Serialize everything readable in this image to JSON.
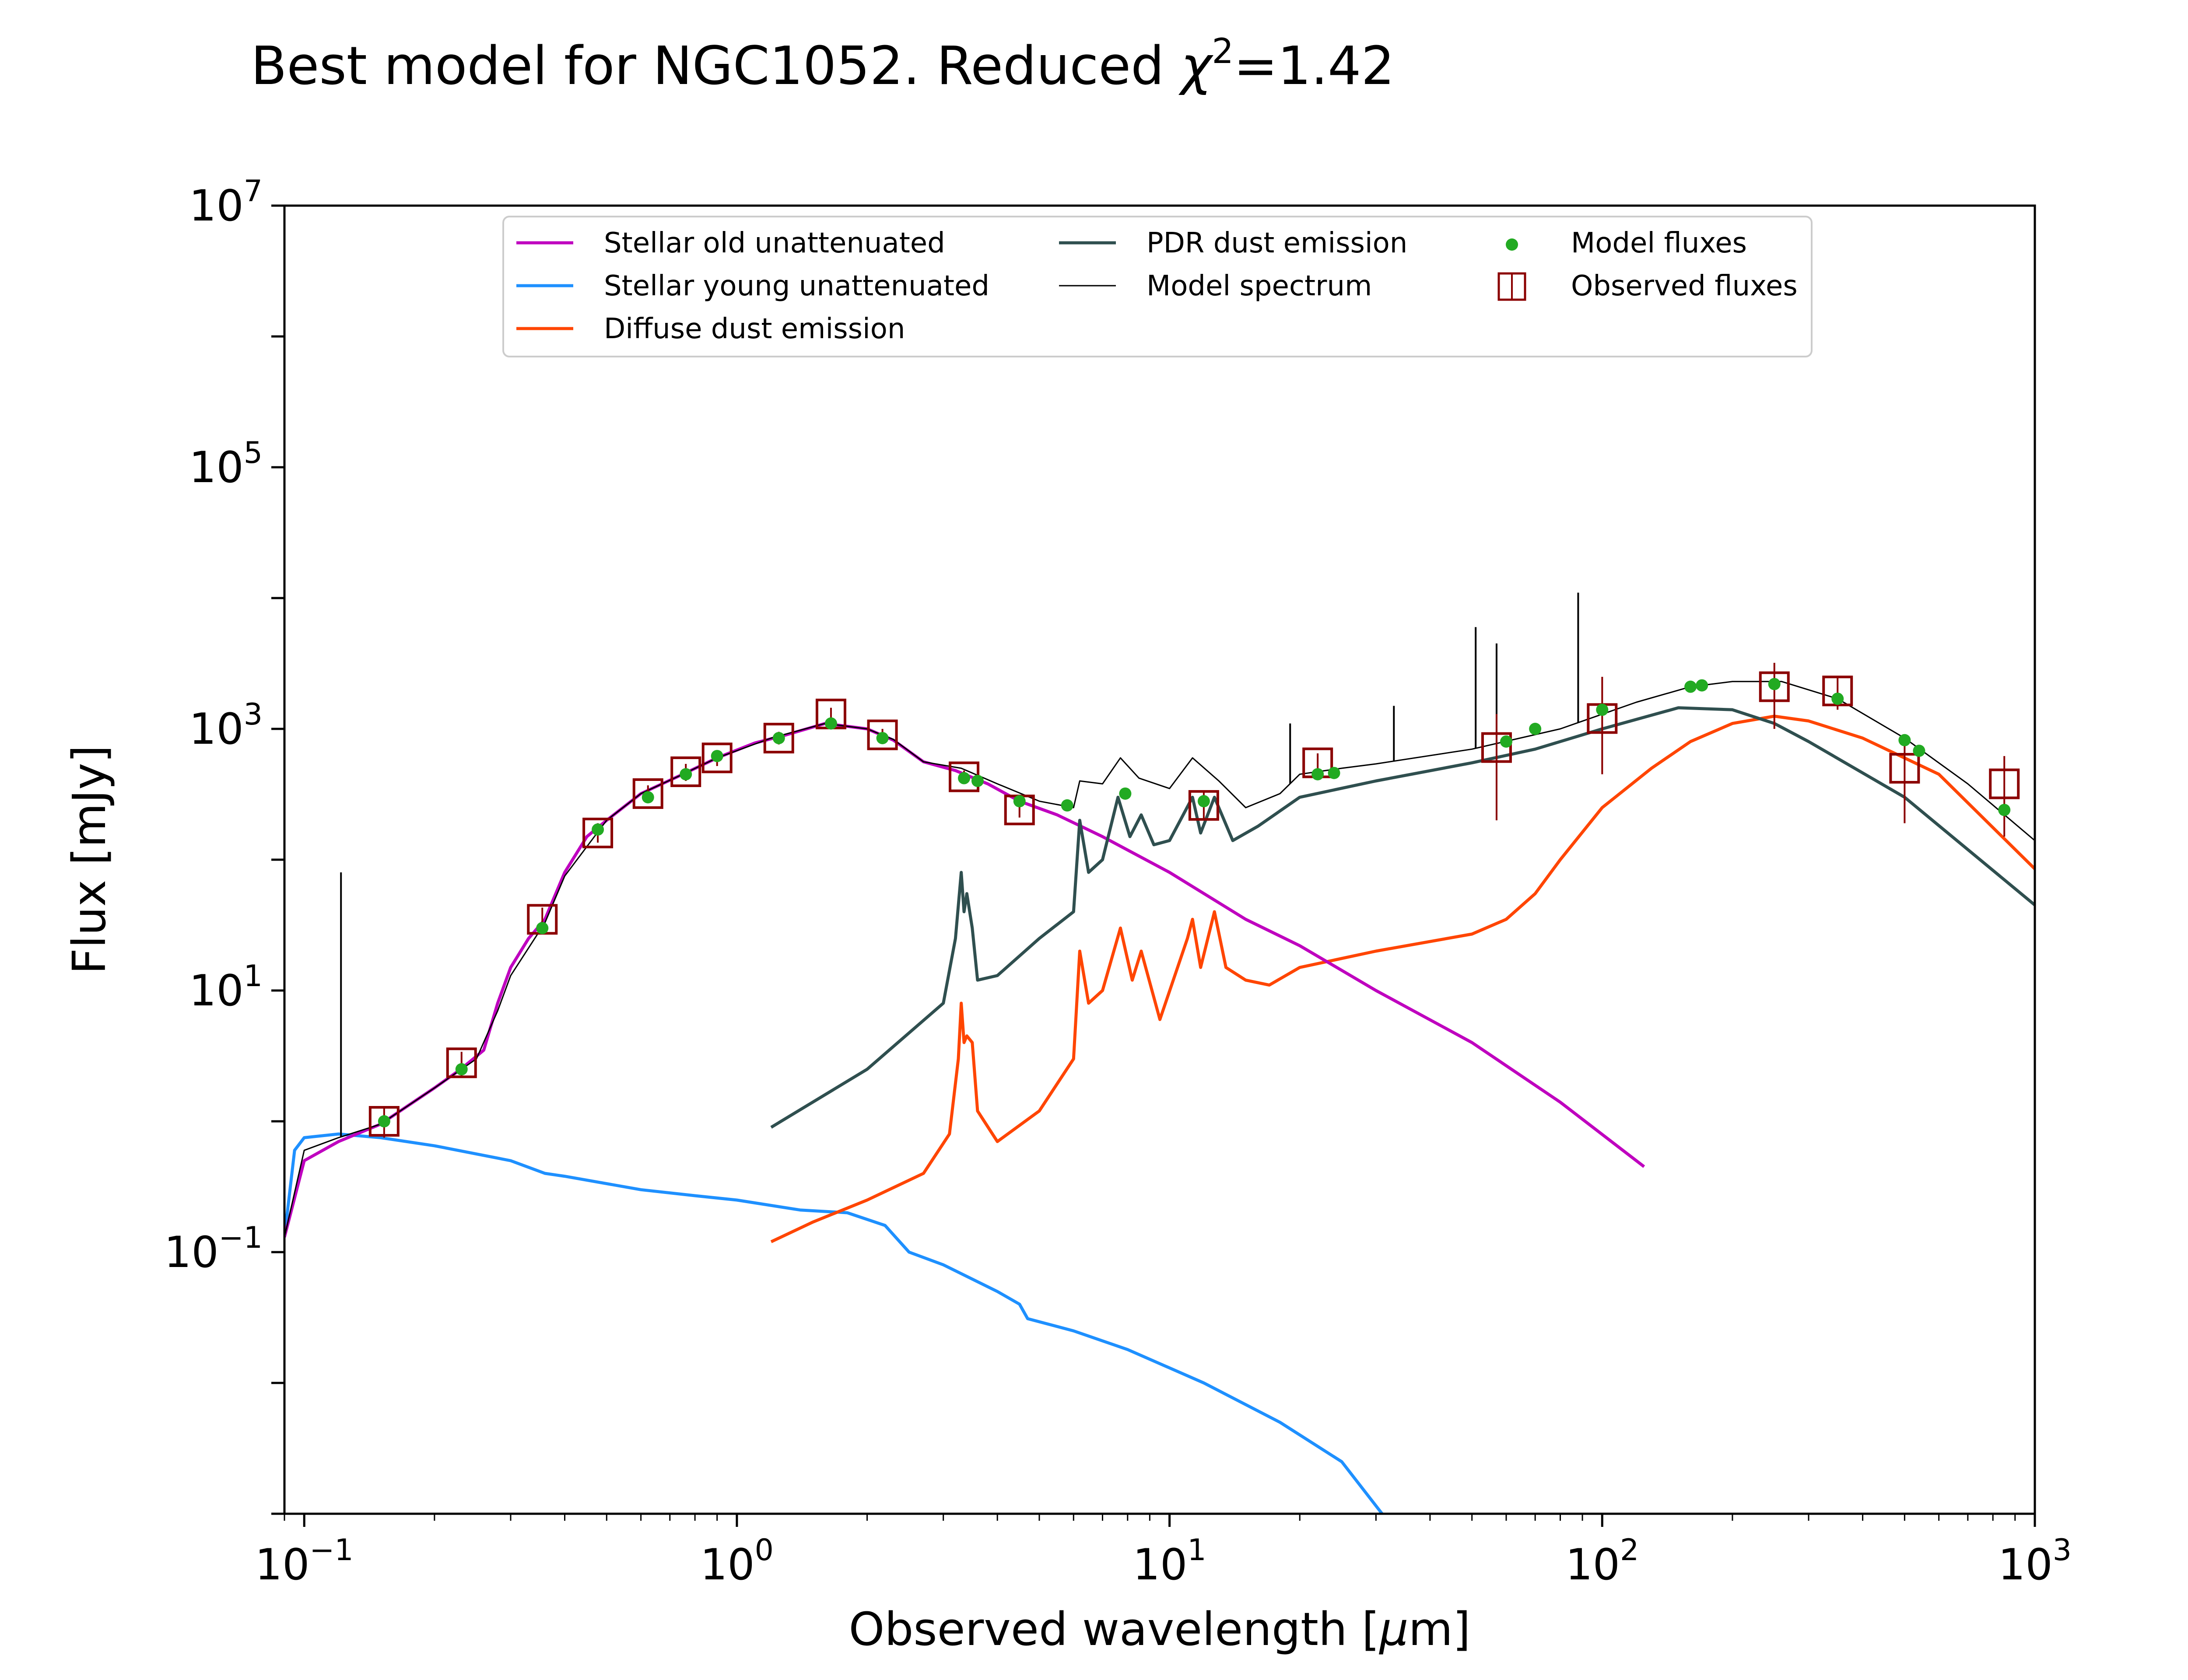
{
  "chart_data": {
    "type": "line",
    "title": {
      "prefix": "Best model for NGC1052. Reduced ",
      "symbol": "χ",
      "superscript": "2",
      "suffix": "=1.42"
    },
    "xlabel": {
      "prefix": "Observed wavelength [",
      "symbol": "μ",
      "suffix": "m]"
    },
    "ylabel": "Flux [mJy]",
    "xscale": "log",
    "yscale": "log",
    "xlim": [
      0.09,
      1000
    ],
    "ylim": [
      0.001,
      10000000
    ],
    "x_ticks": [
      {
        "value": 0.1,
        "base": "10",
        "exp": "−1"
      },
      {
        "value": 1,
        "base": "10",
        "exp": "0"
      },
      {
        "value": 10,
        "base": "10",
        "exp": "1"
      },
      {
        "value": 100,
        "base": "10",
        "exp": "2"
      },
      {
        "value": 1000,
        "base": "10",
        "exp": "3"
      }
    ],
    "y_ticks": [
      {
        "value": 0.1,
        "base": "10",
        "exp": "−1"
      },
      {
        "value": 10,
        "base": "10",
        "exp": "1"
      },
      {
        "value": 1000,
        "base": "10",
        "exp": "3"
      },
      {
        "value": 100000,
        "base": "10",
        "exp": "5"
      },
      {
        "value": 10000000,
        "base": "10",
        "exp": "7"
      }
    ],
    "legend_position": "top-center",
    "series": [
      {
        "name": "Stellar old unattenuated",
        "color": "#bf00bf",
        "kind": "line",
        "points": [
          [
            0.09,
            0.13
          ],
          [
            0.1,
            0.5
          ],
          [
            0.12,
            0.7
          ],
          [
            0.15,
            0.95
          ],
          [
            0.2,
            1.8
          ],
          [
            0.23,
            2.5
          ],
          [
            0.26,
            3.5
          ],
          [
            0.28,
            8
          ],
          [
            0.3,
            15
          ],
          [
            0.33,
            25
          ],
          [
            0.36,
            35
          ],
          [
            0.4,
            80
          ],
          [
            0.45,
            150
          ],
          [
            0.5,
            200
          ],
          [
            0.6,
            320
          ],
          [
            0.75,
            450
          ],
          [
            0.9,
            600
          ],
          [
            1.1,
            780
          ],
          [
            1.3,
            900
          ],
          [
            1.6,
            1100
          ],
          [
            2.0,
            1000
          ],
          [
            2.3,
            820
          ],
          [
            2.7,
            560
          ],
          [
            3.2,
            480
          ],
          [
            3.8,
            380
          ],
          [
            4.5,
            280
          ],
          [
            5.5,
            220
          ],
          [
            7,
            150
          ],
          [
            10,
            80
          ],
          [
            15,
            35
          ],
          [
            20,
            22
          ],
          [
            30,
            10
          ],
          [
            50,
            4
          ],
          [
            80,
            1.4
          ],
          [
            125,
            0.45
          ]
        ]
      },
      {
        "name": "Stellar young unattenuated",
        "color": "#1e90ff",
        "kind": "line",
        "points": [
          [
            0.09,
            0.13
          ],
          [
            0.095,
            0.6
          ],
          [
            0.1,
            0.75
          ],
          [
            0.12,
            0.8
          ],
          [
            0.15,
            0.75
          ],
          [
            0.2,
            0.65
          ],
          [
            0.3,
            0.5
          ],
          [
            0.36,
            0.4
          ],
          [
            0.4,
            0.38
          ],
          [
            0.6,
            0.3
          ],
          [
            0.8,
            0.27
          ],
          [
            1.0,
            0.25
          ],
          [
            1.4,
            0.21
          ],
          [
            1.8,
            0.2
          ],
          [
            2.2,
            0.16
          ],
          [
            2.5,
            0.1
          ],
          [
            3.0,
            0.08
          ],
          [
            4,
            0.05
          ],
          [
            4.5,
            0.04
          ],
          [
            4.7,
            0.031
          ],
          [
            6,
            0.025
          ],
          [
            8,
            0.018
          ],
          [
            12,
            0.01
          ],
          [
            18,
            0.005
          ],
          [
            25,
            0.0025
          ],
          [
            31,
            0.001
          ]
        ]
      },
      {
        "name": "Diffuse dust emission",
        "color": "#ff4500",
        "kind": "line",
        "points": [
          [
            1.2,
            0.12
          ],
          [
            1.5,
            0.17
          ],
          [
            2,
            0.25
          ],
          [
            2.7,
            0.4
          ],
          [
            3.1,
            0.8
          ],
          [
            3.25,
            3
          ],
          [
            3.3,
            8
          ],
          [
            3.35,
            4
          ],
          [
            3.4,
            4.5
          ],
          [
            3.5,
            4
          ],
          [
            3.6,
            1.2
          ],
          [
            4,
            0.7
          ],
          [
            5,
            1.2
          ],
          [
            6,
            3
          ],
          [
            6.2,
            20
          ],
          [
            6.5,
            8
          ],
          [
            7,
            10
          ],
          [
            7.7,
            30
          ],
          [
            8.2,
            12
          ],
          [
            8.6,
            20
          ],
          [
            9.5,
            6
          ],
          [
            11.0,
            25
          ],
          [
            11.3,
            35
          ],
          [
            11.8,
            15
          ],
          [
            12.7,
            40
          ],
          [
            13.5,
            15
          ],
          [
            15,
            12
          ],
          [
            17,
            11
          ],
          [
            20,
            15
          ],
          [
            30,
            20
          ],
          [
            50,
            27
          ],
          [
            60,
            35
          ],
          [
            70,
            55
          ],
          [
            80,
            100
          ],
          [
            100,
            250
          ],
          [
            130,
            500
          ],
          [
            160,
            800
          ],
          [
            200,
            1100
          ],
          [
            250,
            1250
          ],
          [
            300,
            1150
          ],
          [
            400,
            850
          ],
          [
            600,
            450
          ],
          [
            1000,
            85
          ]
        ]
      },
      {
        "name": "PDR dust emission",
        "color": "#2f4f4f",
        "kind": "line",
        "points": [
          [
            1.2,
            0.9
          ],
          [
            2,
            2.5
          ],
          [
            3,
            8
          ],
          [
            3.2,
            25
          ],
          [
            3.3,
            80
          ],
          [
            3.35,
            40
          ],
          [
            3.4,
            55
          ],
          [
            3.5,
            30
          ],
          [
            3.6,
            12
          ],
          [
            4,
            13
          ],
          [
            5,
            25
          ],
          [
            6,
            40
          ],
          [
            6.2,
            200
          ],
          [
            6.5,
            80
          ],
          [
            7,
            100
          ],
          [
            7.6,
            300
          ],
          [
            8.1,
            150
          ],
          [
            8.6,
            220
          ],
          [
            9.2,
            130
          ],
          [
            10,
            140
          ],
          [
            11.3,
            300
          ],
          [
            11.8,
            160
          ],
          [
            12.7,
            300
          ],
          [
            14,
            140
          ],
          [
            16,
            180
          ],
          [
            20,
            300
          ],
          [
            30,
            400
          ],
          [
            50,
            550
          ],
          [
            70,
            700
          ],
          [
            100,
            1000
          ],
          [
            150,
            1450
          ],
          [
            200,
            1400
          ],
          [
            250,
            1100
          ],
          [
            300,
            800
          ],
          [
            500,
            300
          ],
          [
            1000,
            45
          ]
        ]
      },
      {
        "name": "Model spectrum",
        "color": "#000000",
        "kind": "line",
        "points": [
          [
            0.09,
            0.13
          ],
          [
            0.1,
            0.6
          ],
          [
            0.12,
            0.75
          ],
          [
            0.15,
            0.95
          ],
          [
            0.2,
            1.8
          ],
          [
            0.25,
            3
          ],
          [
            0.28,
            7
          ],
          [
            0.3,
            13
          ],
          [
            0.36,
            33
          ],
          [
            0.4,
            75
          ],
          [
            0.5,
            200
          ],
          [
            0.6,
            320
          ],
          [
            0.75,
            450
          ],
          [
            0.9,
            600
          ],
          [
            1.2,
            850
          ],
          [
            1.6,
            1100
          ],
          [
            2.0,
            1000
          ],
          [
            2.3,
            830
          ],
          [
            2.7,
            560
          ],
          [
            3.3,
            500
          ],
          [
            4,
            380
          ],
          [
            5,
            280
          ],
          [
            6,
            250
          ],
          [
            6.2,
            400
          ],
          [
            7,
            380
          ],
          [
            7.7,
            600
          ],
          [
            8.5,
            420
          ],
          [
            10,
            350
          ],
          [
            11.3,
            600
          ],
          [
            13,
            400
          ],
          [
            15,
            250
          ],
          [
            18,
            320
          ],
          [
            20,
            450
          ],
          [
            25,
            500
          ],
          [
            30,
            540
          ],
          [
            50,
            700
          ],
          [
            80,
            1000
          ],
          [
            120,
            1600
          ],
          [
            160,
            2100
          ],
          [
            200,
            2300
          ],
          [
            260,
            2300
          ],
          [
            350,
            1700
          ],
          [
            500,
            850
          ],
          [
            700,
            380
          ],
          [
            1000,
            140
          ]
        ],
        "emission_lines": [
          [
            0.1216,
            80
          ],
          [
            19,
            1100
          ],
          [
            33,
            1500
          ],
          [
            51,
            6000
          ],
          [
            57,
            4500
          ],
          [
            88,
            11000
          ]
        ]
      },
      {
        "name": "Model fluxes",
        "color": "#22aa22",
        "kind": "scatter",
        "points": [
          [
            0.153,
            1.0
          ],
          [
            0.231,
            2.5
          ],
          [
            0.355,
            30
          ],
          [
            0.477,
            170
          ],
          [
            0.623,
            300
          ],
          [
            0.762,
            450
          ],
          [
            0.9,
            620
          ],
          [
            1.25,
            850
          ],
          [
            1.65,
            1100
          ],
          [
            2.17,
            850
          ],
          [
            3.35,
            420
          ],
          [
            3.6,
            400
          ],
          [
            4.5,
            280
          ],
          [
            5.8,
            260
          ],
          [
            7.9,
            320
          ],
          [
            12,
            280
          ],
          [
            22,
            450
          ],
          [
            24,
            460
          ],
          [
            60,
            800
          ],
          [
            70,
            1000
          ],
          [
            100,
            1400
          ],
          [
            160,
            2100
          ],
          [
            170,
            2150
          ],
          [
            250,
            2200
          ],
          [
            350,
            1700
          ],
          [
            500,
            820
          ],
          [
            540,
            680
          ],
          [
            850,
            240
          ]
        ]
      },
      {
        "name": "Observed fluxes",
        "color": "#8b0000",
        "kind": "errorbar",
        "points": [
          {
            "x": 0.153,
            "y": 1.0,
            "lo": 0.75,
            "hi": 1.25
          },
          {
            "x": 0.231,
            "y": 2.8,
            "lo": 2.2,
            "hi": 3.4
          },
          {
            "x": 0.355,
            "y": 35,
            "lo": 28,
            "hi": 43
          },
          {
            "x": 0.477,
            "y": 160,
            "lo": 135,
            "hi": 190
          },
          {
            "x": 0.623,
            "y": 320,
            "lo": 270,
            "hi": 370
          },
          {
            "x": 0.762,
            "y": 470,
            "lo": 400,
            "hi": 540
          },
          {
            "x": 0.9,
            "y": 600,
            "lo": 520,
            "hi": 680
          },
          {
            "x": 1.25,
            "y": 850,
            "lo": 760,
            "hi": 950
          },
          {
            "x": 1.65,
            "y": 1300,
            "lo": 1150,
            "hi": 1450
          },
          {
            "x": 2.17,
            "y": 900,
            "lo": 800,
            "hi": 1000
          },
          {
            "x": 3.35,
            "y": 430,
            "lo": 380,
            "hi": 480
          },
          {
            "x": 4.5,
            "y": 240,
            "lo": 210,
            "hi": 270
          },
          {
            "x": 12,
            "y": 260,
            "lo": 200,
            "hi": 330
          },
          {
            "x": 22,
            "y": 550,
            "lo": 460,
            "hi": 650
          },
          {
            "x": 57,
            "y": 720,
            "lo": 200,
            "hi": 1300
          },
          {
            "x": 100,
            "y": 1200,
            "lo": 450,
            "hi": 2500
          },
          {
            "x": 250,
            "y": 2100,
            "lo": 1000,
            "hi": 3200
          },
          {
            "x": 350,
            "y": 1950,
            "lo": 1400,
            "hi": 2500
          },
          {
            "x": 500,
            "y": 500,
            "lo": 190,
            "hi": 850
          },
          {
            "x": 850,
            "y": 380,
            "lo": 150,
            "hi": 620
          }
        ]
      }
    ]
  }
}
